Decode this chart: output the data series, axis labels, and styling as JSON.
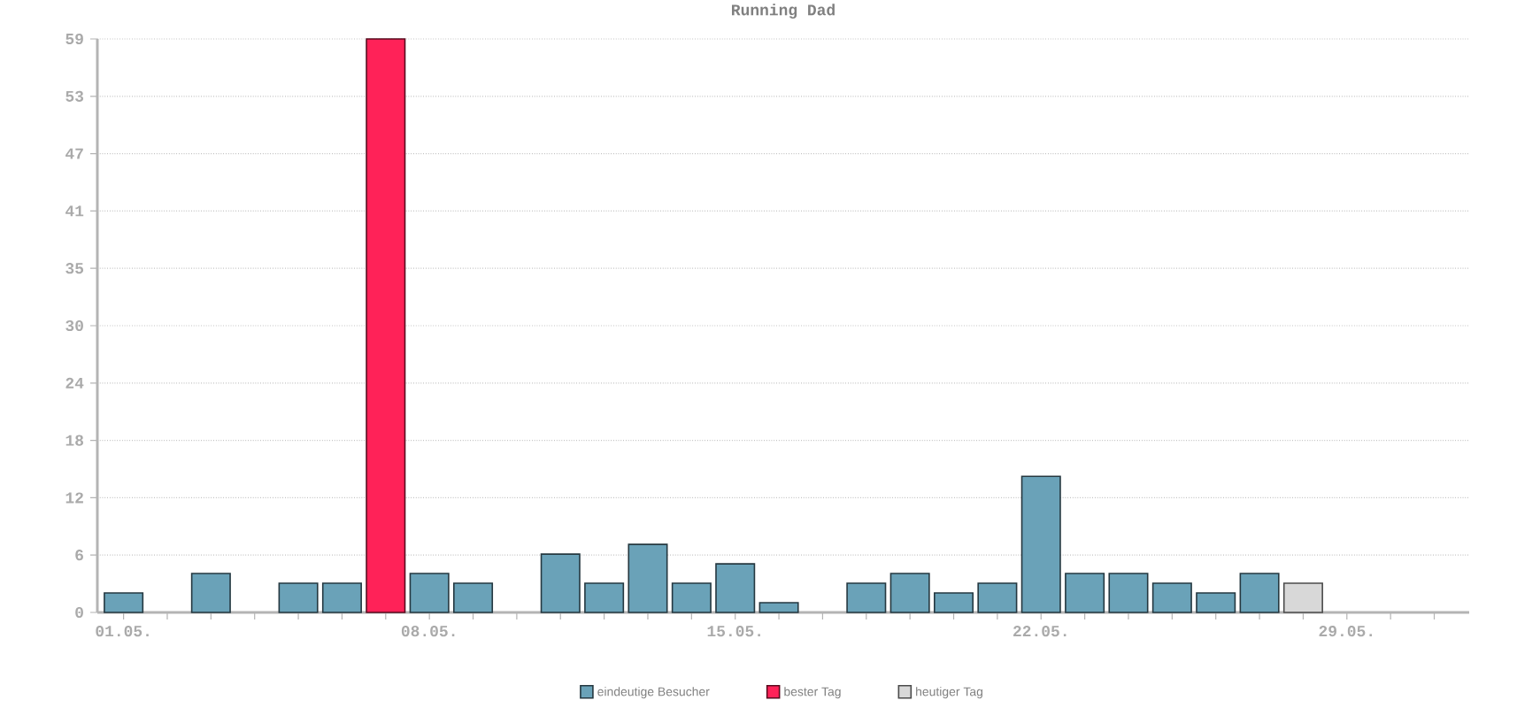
{
  "chart_data": {
    "type": "bar",
    "title": "Running Dad",
    "categories": [
      "01.05.",
      null,
      null,
      null,
      null,
      null,
      null,
      "08.05.",
      null,
      null,
      null,
      null,
      null,
      null,
      "15.05.",
      null,
      null,
      null,
      null,
      null,
      null,
      "22.05.",
      null,
      null,
      null,
      null,
      null,
      null,
      "29.05.",
      null,
      null
    ],
    "series": [
      {
        "name": "eindeutige Besucher",
        "color": "#6aa2b8",
        "values": [
          2,
          null,
          4,
          null,
          3,
          3,
          null,
          4,
          3,
          null,
          6,
          3,
          7,
          3,
          5,
          1,
          null,
          3,
          4,
          2,
          3,
          14,
          4,
          4,
          3,
          2,
          4,
          null,
          null,
          null,
          null
        ]
      },
      {
        "name": "bester Tag",
        "color": "#ff2258",
        "values": [
          null,
          null,
          null,
          null,
          null,
          null,
          59,
          null,
          null,
          null,
          null,
          null,
          null,
          null,
          null,
          null,
          null,
          null,
          null,
          null,
          null,
          null,
          null,
          null,
          null,
          null,
          null,
          null,
          null,
          null,
          null
        ]
      },
      {
        "name": "heutiger Tag",
        "color": "#d8d8d8",
        "values": [
          null,
          null,
          null,
          null,
          null,
          null,
          null,
          null,
          null,
          null,
          null,
          null,
          null,
          null,
          null,
          null,
          null,
          null,
          null,
          null,
          null,
          null,
          null,
          null,
          null,
          null,
          null,
          3,
          null,
          null,
          null
        ]
      }
    ],
    "ylim": [
      0,
      59
    ],
    "yticks": [
      0,
      {
        "value": 5.9,
        "label": "6"
      },
      {
        "value": 11.8,
        "label": "12"
      },
      {
        "value": 17.7,
        "label": "18"
      },
      {
        "value": 23.6,
        "label": "24"
      },
      {
        "value": 29.5,
        "label": "30"
      },
      {
        "value": 35.4,
        "label": "35"
      },
      {
        "value": 41.3,
        "label": "41"
      },
      {
        "value": 47.2,
        "label": "47"
      },
      {
        "value": 53.1,
        "label": "53"
      },
      59
    ],
    "grid": "y",
    "legend": "bottom"
  }
}
